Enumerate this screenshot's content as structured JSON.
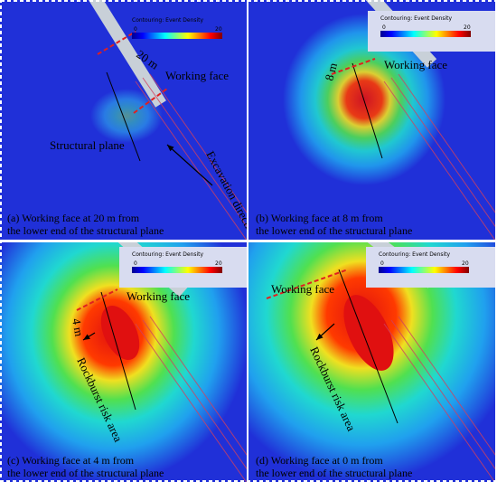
{
  "panels": [
    {
      "caption": [
        "(a) Working face at 20 m from",
        "the lower end of the structural plane"
      ],
      "labels": {
        "distance": "20 m",
        "working_face": "Working face",
        "structural_plane": "Structural plane",
        "excavation": "Excavation direction"
      },
      "legend": {
        "title": "Contouring: Event Density",
        "min": 0,
        "max": 20
      }
    },
    {
      "caption": [
        "(b) Working face at 8 m from",
        "the lower end of the structural plane"
      ],
      "labels": {
        "distance": "8 m",
        "working_face": "Working face"
      },
      "legend": {
        "title": "Contouring: Event Density",
        "min": 0,
        "max": 20
      }
    },
    {
      "caption": [
        "(c) Working face at 4 m from",
        "the lower end of the structural plane"
      ],
      "labels": {
        "distance": "4 m",
        "working_face": "Working face",
        "risk_area": "Rockburst risk area"
      },
      "legend": {
        "title": "Contouring: Event Density",
        "min": 0,
        "max": 20
      }
    },
    {
      "caption": [
        "(d) Working face at 0 m from",
        "the lower end of the structural plane"
      ],
      "labels": {
        "working_face": "Working face",
        "risk_area": "Rockburst risk area"
      },
      "legend": {
        "title": "Contouring: Event Density",
        "min": 0,
        "max": 20
      }
    }
  ]
}
